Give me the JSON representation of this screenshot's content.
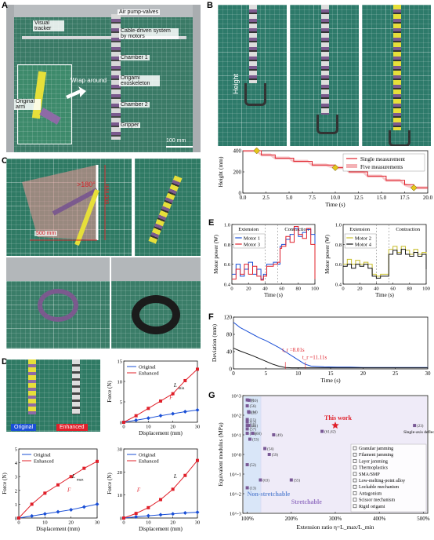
{
  "panels": {
    "A": {
      "label": "A",
      "callouts": {
        "air_pump": "Air pump-valves",
        "visual_tracker": "Visual tracker",
        "cable": "Cable-driven system by motors",
        "chamber1": "Chamber 1",
        "origami": "Origami exoskeleton",
        "chamber2": "Chamber 2",
        "gripper": "Gripper",
        "original_arm": "Original arm",
        "wrap": "Wrap around",
        "scale": "100 mm"
      }
    },
    "B": {
      "label": "B",
      "height_label": "Height"
    },
    "C": {
      "label": "C",
      "angle": ">180°",
      "dim_h": "500 mm",
      "dim_v": "600 mm"
    },
    "D": {
      "label": "D",
      "original": "Original",
      "enhanced": "Enhanced"
    },
    "E": {
      "label": "E"
    },
    "F": {
      "label": "F"
    },
    "G": {
      "label": "G"
    }
  },
  "colors": {
    "red": "#e0202a",
    "blue": "#1a4fd6",
    "yellow": "#c8be2a",
    "purple": "#7b5a8e"
  },
  "chart_data": [
    {
      "id": "B",
      "type": "line",
      "xlabel": "Time (s)",
      "ylabel": "Height (mm)",
      "xlim": [
        0,
        20
      ],
      "ylim": [
        0,
        400
      ],
      "xticks": [
        "0.0",
        "2.5",
        "5.0",
        "7.5",
        "10.0",
        "12.5",
        "15.0",
        "17.5",
        "20.0"
      ],
      "yticks": [
        "0",
        "200",
        "400"
      ],
      "legend": [
        "Single measurement",
        "Five measurements"
      ],
      "series": [
        {
          "name": "Single measurement",
          "x": [
            0,
            1.5,
            2.0,
            3.0,
            3.5,
            5.0,
            5.5,
            7.0,
            7.5,
            9.0,
            10.0,
            11.0,
            11.5,
            13.0,
            13.5,
            15.0,
            15.5,
            17.0,
            17.5,
            18.5,
            20.0
          ],
          "y": [
            400,
            400,
            360,
            360,
            330,
            330,
            300,
            300,
            265,
            265,
            240,
            240,
            200,
            200,
            160,
            160,
            120,
            120,
            80,
            50,
            50
          ]
        }
      ],
      "markers": [
        {
          "x": 1.5,
          "y": 400
        },
        {
          "x": 10.0,
          "y": 240
        },
        {
          "x": 18.5,
          "y": 50
        }
      ]
    },
    {
      "id": "D1",
      "type": "line",
      "xlabel": "Displacement (mm)",
      "ylabel": "Force (N)",
      "xlim": [
        0,
        30
      ],
      "ylim": [
        0,
        15
      ],
      "xticks": [
        "0",
        "10",
        "20",
        "30"
      ],
      "yticks": [
        "0",
        "5",
        "10",
        "15"
      ],
      "legend": [
        "Original",
        "Enhanced"
      ],
      "annotations": [
        "L",
        "min",
        "F"
      ],
      "series": [
        {
          "name": "Original",
          "x": [
            0,
            5,
            10,
            15,
            20,
            25,
            30
          ],
          "y": [
            0,
            0.5,
            1.0,
            1.6,
            2.1,
            2.6,
            3.0
          ]
        },
        {
          "name": "Enhanced",
          "x": [
            0,
            5,
            10,
            15,
            20,
            25,
            30
          ],
          "y": [
            0,
            1.6,
            3.4,
            5.2,
            7.0,
            10.2,
            13.0
          ]
        }
      ]
    },
    {
      "id": "D2",
      "type": "line",
      "xlabel": "Displacement (mm)",
      "ylabel": "Force (N)",
      "xlim": [
        0,
        30
      ],
      "ylim": [
        0,
        5
      ],
      "xticks": [
        "0",
        "10",
        "20",
        "30"
      ],
      "yticks": [
        "0",
        "1",
        "2",
        "3",
        "4",
        "5"
      ],
      "legend": [
        "Original",
        "Enhanced"
      ],
      "annotations": [
        "L",
        "max",
        "F"
      ],
      "series": [
        {
          "name": "Original",
          "x": [
            0,
            5,
            10,
            15,
            20,
            25,
            30
          ],
          "y": [
            0,
            0.15,
            0.3,
            0.45,
            0.6,
            0.8,
            1.0
          ]
        },
        {
          "name": "Enhanced",
          "x": [
            0,
            5,
            10,
            15,
            20,
            25,
            30
          ],
          "y": [
            0,
            1.0,
            1.8,
            2.4,
            3.0,
            3.6,
            4.1
          ]
        }
      ]
    },
    {
      "id": "D3",
      "type": "line",
      "xlabel": "Displacement (mm)",
      "ylabel": "Force (N)",
      "xlim": [
        0,
        30
      ],
      "ylim": [
        0,
        30
      ],
      "xticks": [
        "0",
        "10",
        "20",
        "30"
      ],
      "yticks": [
        "0",
        "10",
        "20",
        "30"
      ],
      "legend": [
        "Original",
        "Enhanced"
      ],
      "annotations": [
        "L",
        "F"
      ],
      "series": [
        {
          "name": "Original",
          "x": [
            0,
            5,
            10,
            15,
            20,
            25,
            30
          ],
          "y": [
            0,
            0.5,
            1.0,
            1.4,
            1.8,
            2.2,
            2.5
          ]
        },
        {
          "name": "Enhanced",
          "x": [
            0,
            5,
            10,
            15,
            20,
            25,
            30
          ],
          "y": [
            0,
            2.0,
            4.5,
            8.0,
            12.5,
            18.5,
            25.0
          ]
        }
      ]
    },
    {
      "id": "E1",
      "type": "line",
      "xlabel": "Time (s)",
      "ylabel": "Motor power (W)",
      "xlim": [
        0,
        100
      ],
      "ylim": [
        0.4,
        1.0
      ],
      "xticks": [
        "0",
        "20",
        "40",
        "60",
        "80",
        "100"
      ],
      "yticks": [
        "0.4",
        "0.6",
        "0.8",
        "1.0"
      ],
      "legend": [
        "Motor 1",
        "Motor 3"
      ],
      "phases": [
        "Extension",
        "Contraction"
      ],
      "series": [
        {
          "name": "Motor 1",
          "x": [
            0,
            5,
            10,
            15,
            20,
            25,
            30,
            35,
            38,
            42,
            50,
            55,
            58,
            60,
            65,
            70,
            75,
            80,
            85,
            90,
            95,
            100
          ],
          "y": [
            0.5,
            0.6,
            0.48,
            0.55,
            0.62,
            0.5,
            0.55,
            0.45,
            0.5,
            0.6,
            0.62,
            0.6,
            0.78,
            0.8,
            0.85,
            0.9,
            0.96,
            0.88,
            0.92,
            0.95,
            0.9,
            0.5
          ]
        },
        {
          "name": "Motor 3",
          "x": [
            0,
            5,
            10,
            15,
            20,
            25,
            30,
            35,
            38,
            42,
            50,
            55,
            58,
            60,
            65,
            70,
            75,
            80,
            85,
            90,
            95,
            100
          ],
          "y": [
            0.45,
            0.55,
            0.5,
            0.6,
            0.5,
            0.58,
            0.48,
            0.44,
            0.48,
            0.58,
            0.6,
            0.62,
            0.76,
            0.78,
            0.88,
            0.82,
            0.98,
            0.9,
            0.86,
            0.96,
            0.8,
            0.45
          ]
        }
      ]
    },
    {
      "id": "E2",
      "type": "line",
      "xlabel": "Time (s)",
      "ylabel": "Motor power (W)",
      "xlim": [
        0,
        100
      ],
      "ylim": [
        0.4,
        1.0
      ],
      "xticks": [
        "0",
        "20",
        "40",
        "60",
        "80",
        "100"
      ],
      "yticks": [
        "0.4",
        "0.6",
        "0.8",
        "1.0"
      ],
      "legend": [
        "Motor 2",
        "Motor 4"
      ],
      "phases": [
        "Extension",
        "Contraction"
      ],
      "series": [
        {
          "name": "Motor 2",
          "x": [
            0,
            5,
            10,
            15,
            20,
            25,
            30,
            35,
            40,
            45,
            50,
            55,
            60,
            65,
            70,
            75,
            80,
            85,
            90,
            95,
            100
          ],
          "y": [
            0.6,
            0.65,
            0.6,
            0.64,
            0.6,
            0.62,
            0.6,
            0.5,
            0.48,
            0.5,
            0.5,
            0.75,
            0.78,
            0.72,
            0.78,
            0.74,
            0.7,
            0.75,
            0.7,
            0.72,
            0.6
          ]
        },
        {
          "name": "Motor 4",
          "x": [
            0,
            5,
            10,
            15,
            20,
            25,
            30,
            35,
            40,
            45,
            50,
            55,
            60,
            65,
            70,
            75,
            80,
            85,
            90,
            95,
            100
          ],
          "y": [
            0.58,
            0.6,
            0.56,
            0.6,
            0.58,
            0.6,
            0.56,
            0.48,
            0.46,
            0.48,
            0.48,
            0.7,
            0.74,
            0.7,
            0.75,
            0.7,
            0.68,
            0.72,
            0.68,
            0.7,
            0.55
          ]
        }
      ]
    },
    {
      "id": "F",
      "type": "line",
      "xlabel": "Time (s)",
      "ylabel": "Deviation (mm)",
      "xlim": [
        0,
        30
      ],
      "ylim": [
        0,
        150
      ],
      "xticks": [
        "0",
        "5",
        "10",
        "15",
        "20",
        "25",
        "30"
      ],
      "yticks": [
        "0",
        "40",
        "80",
        "120"
      ],
      "annotations": [
        {
          "label": "t_r =8.01s",
          "x": 8.01
        },
        {
          "label": "t_r =11.11s",
          "x": 11.11
        }
      ],
      "series": [
        {
          "color": "#1a4fd6",
          "x": [
            0,
            1,
            2,
            3,
            4,
            5,
            6,
            7,
            8,
            9,
            10,
            11,
            12,
            14,
            16,
            18,
            20,
            22,
            25,
            28,
            30
          ],
          "y": [
            135,
            120,
            110,
            100,
            90,
            82,
            72,
            62,
            50,
            38,
            26,
            14,
            8,
            6,
            5,
            5,
            4,
            4,
            4,
            4,
            4
          ]
        },
        {
          "color": "#111111",
          "x": [
            0,
            1,
            2,
            3,
            4,
            5,
            6,
            7,
            8,
            9,
            10,
            12,
            15,
            20,
            25,
            30
          ],
          "y": [
            60,
            52,
            45,
            38,
            30,
            22,
            14,
            8,
            4,
            3,
            3,
            3,
            3,
            3,
            3,
            3
          ]
        }
      ]
    },
    {
      "id": "G",
      "type": "scatter",
      "xlabel": "Extension ratio η=L_max/L_min",
      "ylabel": "Equivalent modulus (MPa)",
      "xticks": [
        "100%",
        "200%",
        "300%",
        "400%",
        "500%"
      ],
      "yticks": [
        "10^-3",
        "10^-2",
        "10^-1",
        "10^0",
        "10^1",
        "10^2",
        "10^3"
      ],
      "regions": [
        "Non-stretchable",
        "Stretchable"
      ],
      "legend": [
        "Granular jamming",
        "Filament jamming",
        "Layer jamming",
        "Thermoplastics",
        "SMA/SMP",
        "Low-melting-point alloy",
        "Lockable mechanism",
        "Antagonism",
        "Scissor mechanism",
        "Rigid origami"
      ],
      "highlight": {
        "label": "This work",
        "x": 300,
        "y": 30
      },
      "extra_label": "Single-axis deflection",
      "points": [
        {
          "label": "(8)",
          "x": 100,
          "y": 600
        },
        {
          "label": "(10)",
          "x": 104,
          "y": 580
        },
        {
          "label": "(56)",
          "x": 100,
          "y": 300
        },
        {
          "label": "(14)",
          "x": 103,
          "y": 150
        },
        {
          "label": "(9)",
          "x": 104,
          "y": 140
        },
        {
          "label": "(11)",
          "x": 100,
          "y": 60
        },
        {
          "label": "(12)",
          "x": 100,
          "y": 45
        },
        {
          "label": "(50)",
          "x": 100,
          "y": 30
        },
        {
          "label": "(51)",
          "x": 104,
          "y": 30
        },
        {
          "label": "(57)",
          "x": 100,
          "y": 20
        },
        {
          "label": "(58)",
          "x": 100,
          "y": 12
        },
        {
          "label": "(60)",
          "x": 112,
          "y": 12
        },
        {
          "label": "(53)",
          "x": 106,
          "y": 6
        },
        {
          "label": "(52)",
          "x": 100,
          "y": 0.3
        },
        {
          "label": "(13)",
          "x": 100,
          "y": 0.02
        },
        {
          "label": "(54)",
          "x": 140,
          "y": 2
        },
        {
          "label": "(59)",
          "x": 150,
          "y": 1
        },
        {
          "label": "(49)",
          "x": 160,
          "y": 10
        },
        {
          "label": "(63)",
          "x": 130,
          "y": 0.05
        },
        {
          "label": "(55)",
          "x": 200,
          "y": 0.05
        },
        {
          "label": "(61,62)",
          "x": 270,
          "y": 15
        },
        {
          "label": "(23)",
          "x": 480,
          "y": 30
        }
      ]
    }
  ]
}
